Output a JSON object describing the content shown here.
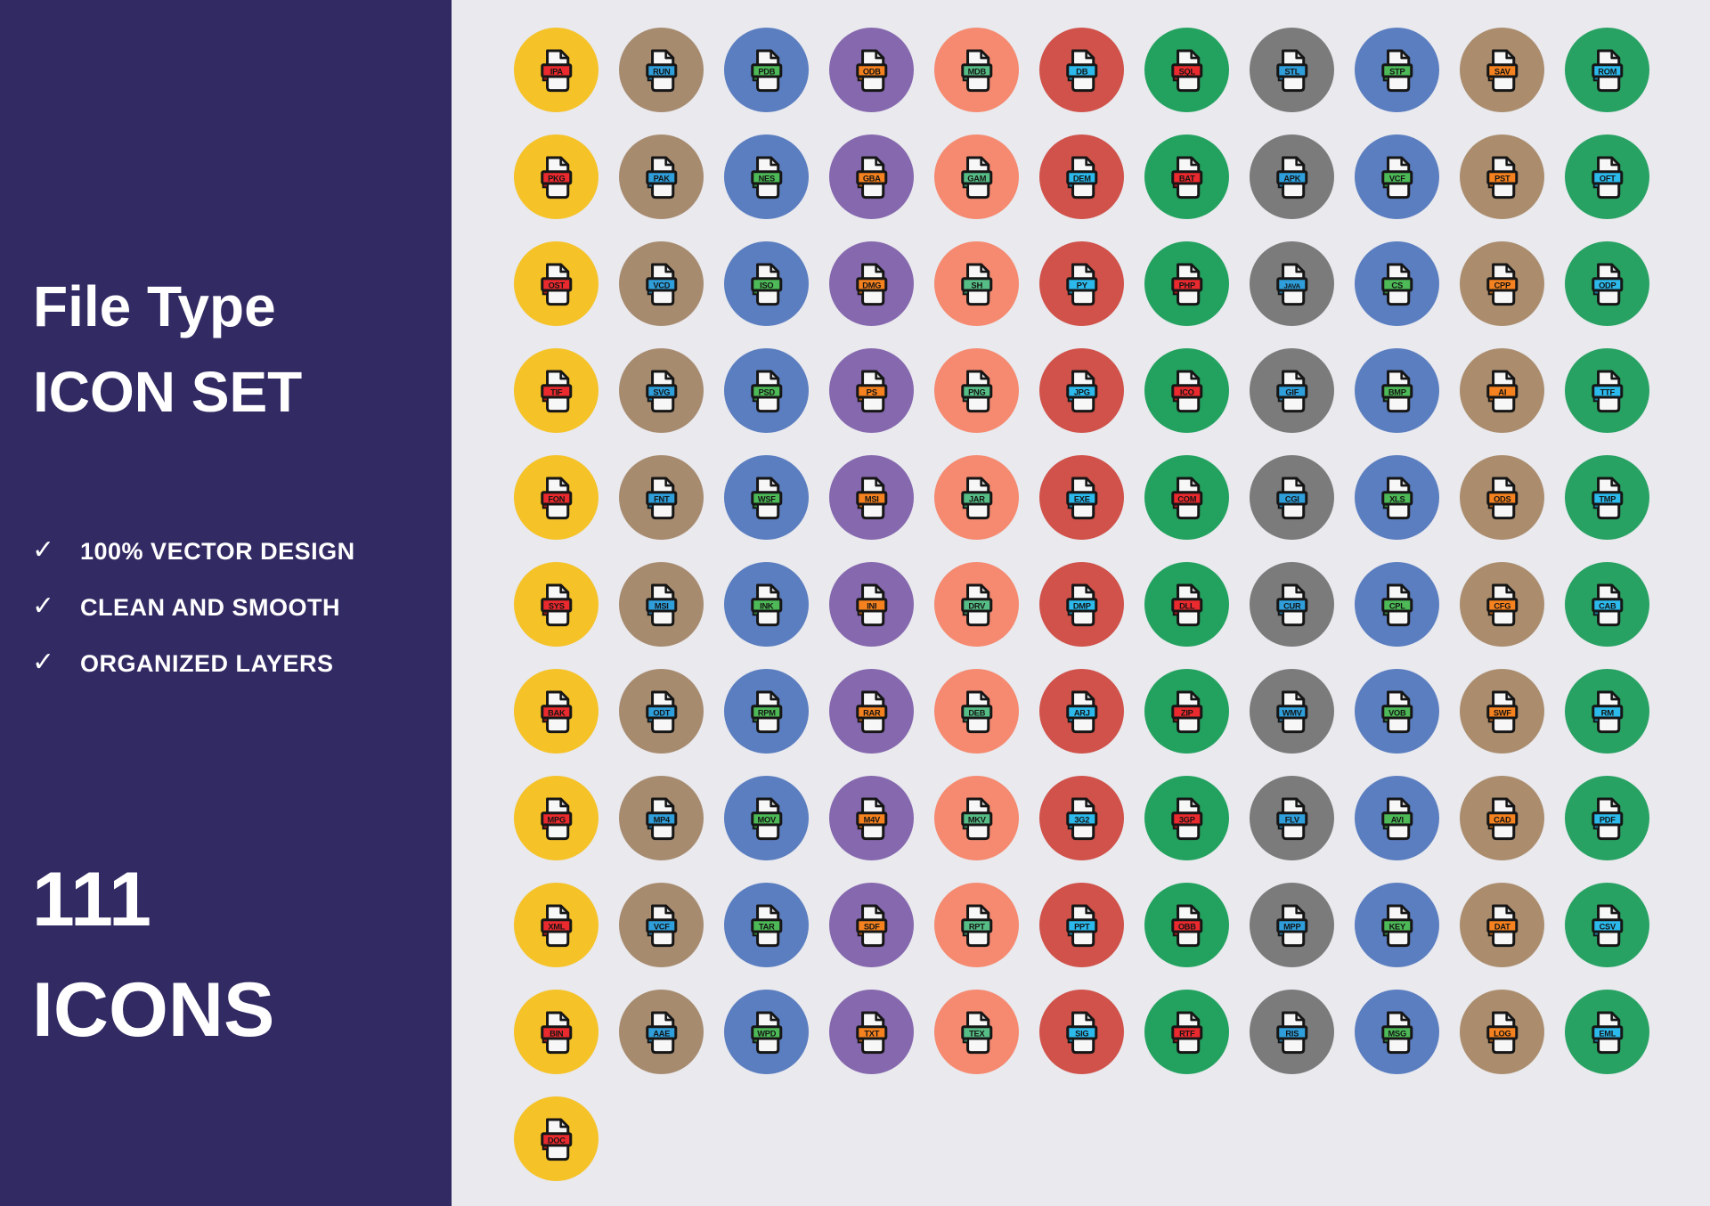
{
  "sidebar": {
    "bg": "#312a63",
    "title_line1": "File Type",
    "title_line2": "ICON SET",
    "check_glyph": "✓",
    "features": [
      "100% VECTOR DESIGN",
      "CLEAN AND SMOOTH",
      "ORGANIZED LAYERS"
    ],
    "count_number": "111",
    "count_label": "ICONS"
  },
  "canvas": {
    "bg": "#e9e9ee"
  },
  "palette": {
    "circle_colors_by_column": [
      "#f5c228",
      "#a78b6f",
      "#5b7ec0",
      "#8668ae",
      "#f58a70",
      "#d0524a",
      "#23a25f",
      "#7b7b7b",
      "#5b7ec0",
      "#ab8d6e",
      "#28a263"
    ],
    "badge_colors_by_column": [
      "#ea2a2e",
      "#2f9fdb",
      "#4db957",
      "#f5821f",
      "#57bd86",
      "#2cb9ec",
      "#ea2a2e",
      "#2f9fdb",
      "#4db957",
      "#f5821f",
      "#2cb9ec"
    ],
    "paper": "#f7f7f7",
    "fold": "#d8d8d8",
    "outline": "#161616",
    "badge_text": "#141414"
  },
  "grid": {
    "rows": [
      [
        "IPA",
        "RUN",
        "PDB",
        "ODB",
        "MDB",
        "DB",
        "SQL",
        "STL",
        "STP",
        "SAV",
        "ROM"
      ],
      [
        "PKG",
        "PAK",
        "NES",
        "GBA",
        "GAM",
        "DEM",
        "BAT",
        "APK",
        "VCF",
        "PST",
        "OFT"
      ],
      [
        "OST",
        "VCD",
        "ISO",
        "DMG",
        "SH",
        "PY",
        "PHP",
        "JAVA",
        "CS",
        "CPP",
        "ODP"
      ],
      [
        "TIF",
        "SVG",
        "PSD",
        "PS",
        "PNG",
        "JPG",
        "ICO",
        "GIF",
        "BMP",
        "AI",
        "TTF"
      ],
      [
        "FON",
        "FNT",
        "WSF",
        "MSI",
        "JAR",
        "EXE",
        "COM",
        "CGI",
        "XLS",
        "ODS",
        "TMP"
      ],
      [
        "SYS",
        "MSI",
        "INK",
        "INI",
        "DRV",
        "DMP",
        "DLL",
        "CUR",
        "CPL",
        "CFG",
        "CAB"
      ],
      [
        "BAK",
        "ODT",
        "RPM",
        "RAR",
        "DEB",
        "ARJ",
        "ZIP",
        "WMV",
        "VOB",
        "SWF",
        "RM"
      ],
      [
        "MPG",
        "MP4",
        "MOV",
        "M4V",
        "MKV",
        "3G2",
        "3GP",
        "FLV",
        "AVI",
        "CAD",
        "PDF"
      ],
      [
        "XML",
        "VCF",
        "TAR",
        "SDF",
        "RPT",
        "PPT",
        "OBB",
        "MPP",
        "KEY",
        "DAT",
        "CSV"
      ],
      [
        "BIN",
        "AAE",
        "WPD",
        "TXT",
        "TEX",
        "SIG",
        "RTF",
        "RIS",
        "MSG",
        "LOG",
        "EML"
      ],
      [
        "DOC"
      ]
    ]
  }
}
